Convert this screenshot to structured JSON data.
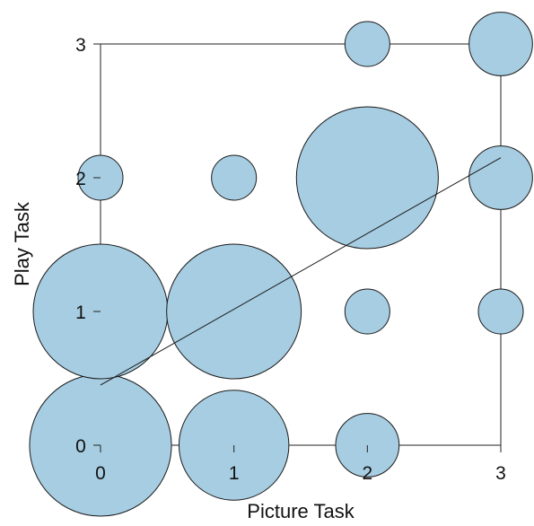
{
  "chart_data": {
    "type": "scatter",
    "subtype": "bubble",
    "title": "",
    "xlabel": "Picture Task",
    "ylabel": "Play Task",
    "xlim": [
      0,
      3
    ],
    "ylim": [
      0,
      3
    ],
    "xticks": [
      0,
      1,
      2,
      3
    ],
    "yticks": [
      0,
      1,
      2,
      3
    ],
    "grid": false,
    "bubble_color": "#a7cde2",
    "bubble_stroke": "#1a1a1a",
    "points": [
      {
        "x": 0,
        "y": 0,
        "size": 10
      },
      {
        "x": 1,
        "y": 0,
        "size": 6
      },
      {
        "x": 2,
        "y": 0,
        "size": 2
      },
      {
        "x": 0,
        "y": 1,
        "size": 9
      },
      {
        "x": 1,
        "y": 1,
        "size": 9
      },
      {
        "x": 2,
        "y": 1,
        "size": 1
      },
      {
        "x": 3,
        "y": 1,
        "size": 1
      },
      {
        "x": 0,
        "y": 2,
        "size": 1
      },
      {
        "x": 1,
        "y": 2,
        "size": 1
      },
      {
        "x": 2,
        "y": 2,
        "size": 10
      },
      {
        "x": 3,
        "y": 2,
        "size": 2
      },
      {
        "x": 2,
        "y": 3,
        "size": 1
      },
      {
        "x": 3,
        "y": 3,
        "size": 2
      }
    ],
    "regression_line": {
      "x": [
        0,
        3
      ],
      "y": [
        0.45,
        2.15
      ]
    }
  }
}
